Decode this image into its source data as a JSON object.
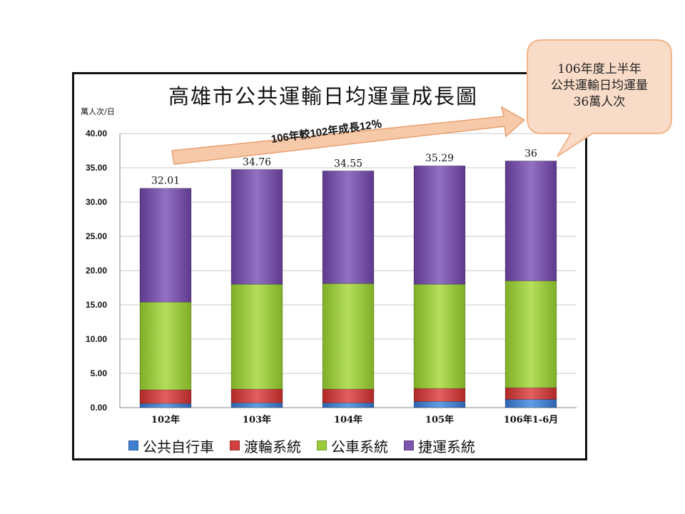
{
  "chart_data": {
    "type": "bar",
    "stacked": true,
    "title": "高雄市公共運輸日均運量成長圖",
    "unit_label": "萬人次/日",
    "categories": [
      "102年",
      "103年",
      "104年",
      "105年",
      "106年1-6月"
    ],
    "ylim": [
      0,
      40
    ],
    "yticks": [
      "0.00",
      "5.00",
      "10.00",
      "15.00",
      "20.00",
      "25.00",
      "30.00",
      "35.00",
      "40.00"
    ],
    "grid": true,
    "legend_position": "bottom",
    "series": [
      {
        "name": "公共自行車",
        "color": "#3f7fd0",
        "values": [
          0.6,
          0.7,
          0.7,
          0.9,
          1.2
        ]
      },
      {
        "name": "渡輪系統",
        "color": "#d23f3f",
        "values": [
          2.0,
          2.0,
          2.0,
          1.9,
          1.7
        ]
      },
      {
        "name": "公車系統",
        "color": "#9bcd3b",
        "values": [
          12.8,
          15.3,
          15.4,
          15.2,
          15.6
        ]
      },
      {
        "name": "捷運系統",
        "color": "#7e55ae",
        "values": [
          16.61,
          16.76,
          16.45,
          17.29,
          17.5
        ]
      }
    ],
    "totals": [
      "32.01",
      "34.76",
      "34.55",
      "35.29",
      "36"
    ],
    "growth_annotation": "106年較102年成長12％",
    "callout": {
      "line1": "106年度上半年",
      "line2": "公共運輸日均運量",
      "line3": "36萬人次"
    },
    "colors": {
      "arrow": "#f6c9a8",
      "arrow_border": "#e9a070",
      "callout_fill": "#f9dcc8",
      "callout_border": "#f2b48a"
    }
  }
}
